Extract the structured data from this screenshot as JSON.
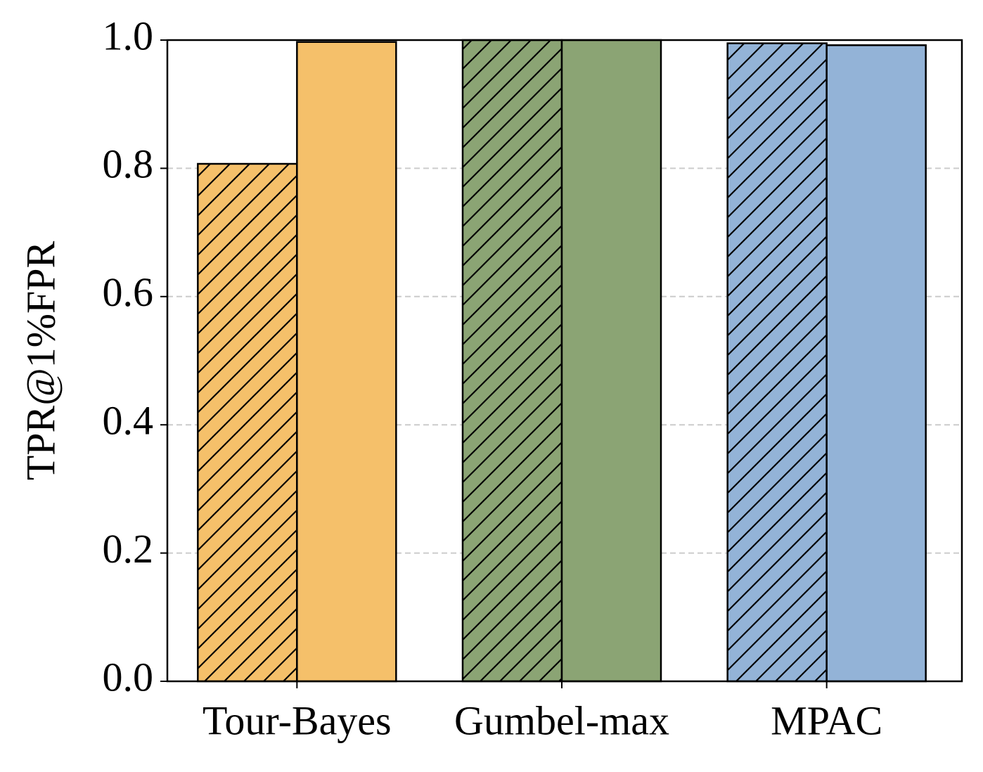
{
  "chart_data": {
    "type": "bar",
    "y_label": "TPR@1%FPR",
    "categories": [
      "Tour-Bayes",
      "Gumbel-max",
      "MPAC"
    ],
    "category_colors": [
      "#f5c06a",
      "#8ba474",
      "#93b3d7"
    ],
    "series": [
      {
        "hatch": true,
        "values": [
          0.807,
          1.0,
          0.995
        ]
      },
      {
        "hatch": false,
        "values": [
          0.997,
          1.0,
          0.992
        ]
      }
    ],
    "ylim": [
      0,
      1
    ],
    "yticks": [
      {
        "value": 0,
        "label": "0.0"
      },
      0.2,
      0.4,
      0.6,
      0.8,
      {
        "value": 1,
        "label": "1.0"
      }
    ],
    "grid": true
  }
}
